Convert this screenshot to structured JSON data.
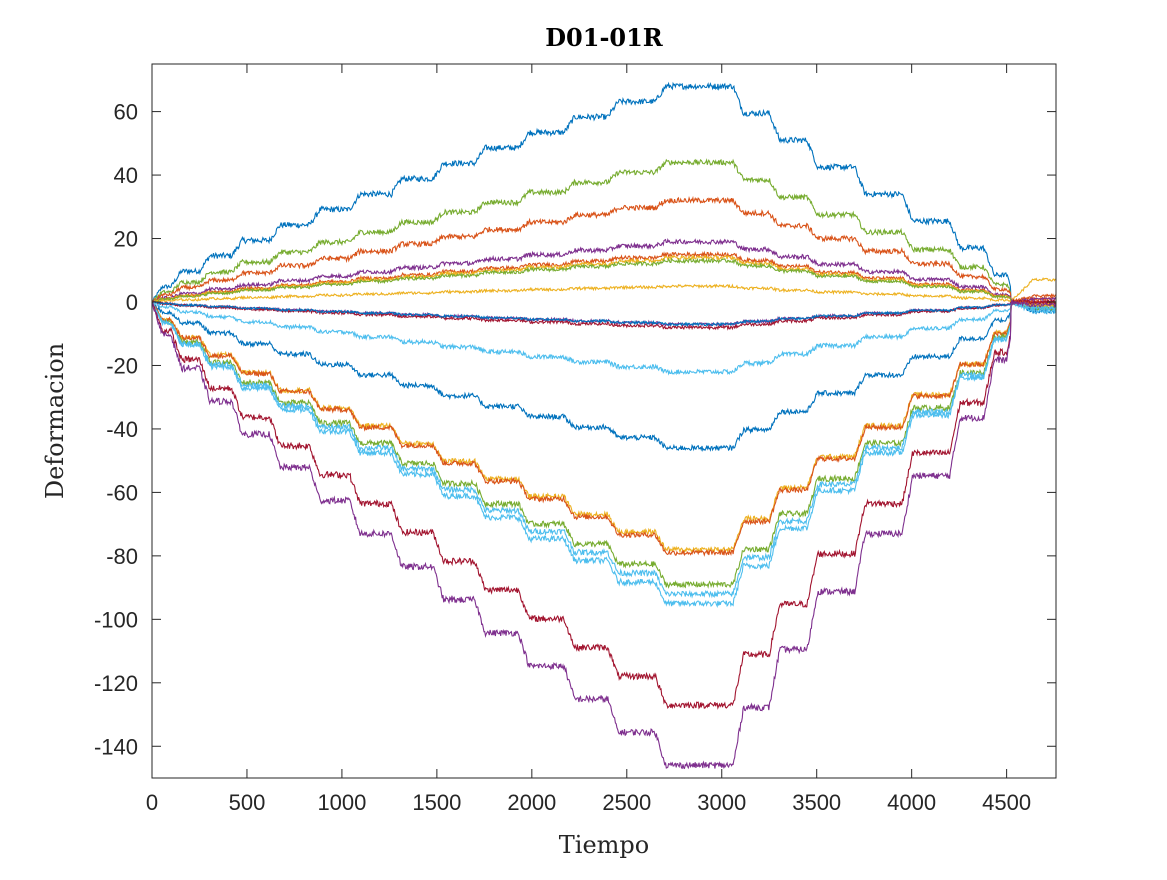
{
  "chart_data": {
    "type": "line",
    "title": "D01-01R",
    "xlabel": "Tiempo",
    "ylabel": "Deformacion",
    "xlim": [
      0,
      4760
    ],
    "ylim": [
      -150,
      75
    ],
    "xticks": [
      0,
      500,
      1000,
      1500,
      2000,
      2500,
      3000,
      3500,
      4000,
      4500
    ],
    "yticks": [
      60,
      40,
      20,
      0,
      -20,
      -40,
      -60,
      -80,
      -100,
      -120,
      -140
    ],
    "xtick_labels": [
      "0",
      "500",
      "1000",
      "1500",
      "2000",
      "2500",
      "3000",
      "3500",
      "4000",
      "4500"
    ],
    "ytick_labels": [
      "60",
      "40",
      "20",
      "0",
      "-20",
      "-40",
      "-60",
      "-80",
      "-100",
      "-120",
      "-140"
    ],
    "grid": false,
    "legend": "none",
    "steps_up_x": [
      0,
      100,
      250,
      420,
      620,
      830,
      1040,
      1260,
      1480,
      1700,
      1930,
      2170,
      2400,
      2650
    ],
    "steps_down_x": [
      3060,
      3250,
      3450,
      3700,
      3950,
      4200,
      4380,
      4500
    ],
    "series": [
      {
        "color": "#0072BD",
        "peak": 68,
        "end": -2,
        "noise": 0.9
      },
      {
        "color": "#77AC30",
        "peak": 44,
        "end": -1,
        "noise": 0.8
      },
      {
        "color": "#D95319",
        "peak": 32,
        "end": 1,
        "noise": 0.8
      },
      {
        "color": "#7E2F8E",
        "peak": 19,
        "end": 0,
        "noise": 0.7
      },
      {
        "color": "#D95319",
        "peak": 15,
        "end": 2,
        "noise": 0.6
      },
      {
        "color": "#EDB120",
        "peak": 14,
        "end": -1,
        "noise": 0.6
      },
      {
        "color": "#77AC30",
        "peak": 13,
        "end": -2,
        "noise": 0.6
      },
      {
        "color": "#EDB120",
        "peak": 5,
        "end": 7,
        "noise": 0.6
      },
      {
        "color": "#7E2F8E",
        "peak": -7,
        "end": 1,
        "noise": 0.6
      },
      {
        "color": "#A2142F",
        "peak": -8,
        "end": 0,
        "noise": 0.6
      },
      {
        "color": "#0072BD",
        "peak": -7,
        "end": -2,
        "noise": 0.5
      },
      {
        "color": "#4DBEEE",
        "peak": -22,
        "end": -2,
        "noise": 0.7
      },
      {
        "color": "#0072BD",
        "peak": -46,
        "end": -3,
        "noise": 0.8
      },
      {
        "color": "#EDB120",
        "peak": -78,
        "end": -1,
        "noise": 0.8
      },
      {
        "color": "#D95319",
        "peak": -79,
        "end": 0,
        "noise": 0.8
      },
      {
        "color": "#77AC30",
        "peak": -89,
        "end": -2,
        "noise": 0.9
      },
      {
        "color": "#4DBEEE",
        "peak": -92,
        "end": -2,
        "noise": 0.9
      },
      {
        "color": "#4DBEEE",
        "peak": -95,
        "end": -3,
        "noise": 0.9
      },
      {
        "color": "#A2142F",
        "peak": -127,
        "end": 0,
        "noise": 1.0
      },
      {
        "color": "#7E2F8E",
        "peak": -146,
        "end": -1,
        "noise": 1.0
      }
    ]
  }
}
